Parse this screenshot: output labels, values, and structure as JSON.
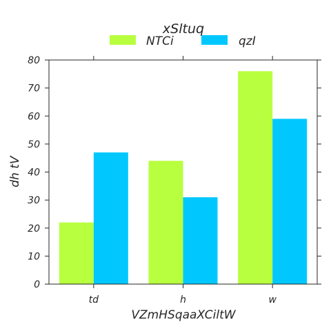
{
  "chart_data": {
    "type": "bar",
    "title": "xSltuq",
    "xlabel": "VZmHSqaaXCiltW",
    "ylabel": "dh tV",
    "categories": [
      "td",
      "h",
      "w"
    ],
    "series": [
      {
        "name": "NTCi",
        "values": [
          22,
          44,
          76
        ],
        "color": "#b8ff3f"
      },
      {
        "name": "qzI",
        "values": [
          47,
          31,
          59
        ],
        "color": "#00c8ff"
      }
    ],
    "ylim": [
      0,
      80
    ],
    "yticks": [
      0,
      10,
      20,
      30,
      40,
      50,
      60,
      70,
      80
    ],
    "grid": false,
    "legend": "top-center"
  }
}
